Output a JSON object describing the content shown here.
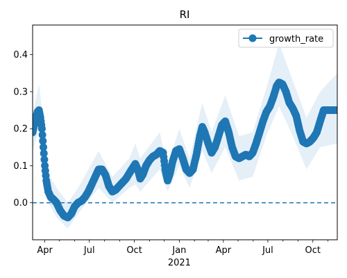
{
  "chart_data": {
    "type": "line",
    "title": "RI",
    "xlabel": "",
    "ylabel": "",
    "x_axis_kind": "date",
    "xlim": [
      "2020-03-07",
      "2021-11-20"
    ],
    "ylim": [
      -0.1,
      0.48
    ],
    "x_ticks": [
      {
        "date": "2020-04-01",
        "label": "Apr"
      },
      {
        "date": "2020-07-01",
        "label": "Jul"
      },
      {
        "date": "2020-10-01",
        "label": "Oct"
      },
      {
        "date": "2021-01-01",
        "label": "Jan",
        "sublabel": "2021"
      },
      {
        "date": "2021-04-01",
        "label": "Apr"
      },
      {
        "date": "2021-07-01",
        "label": "Jul"
      },
      {
        "date": "2021-10-01",
        "label": "Oct"
      }
    ],
    "x_minor_ticks": [
      "2020-05-01",
      "2020-06-01",
      "2020-08-01",
      "2020-09-01",
      "2020-11-01",
      "2020-12-01",
      "2021-02-01",
      "2021-03-01",
      "2021-05-01",
      "2021-06-01",
      "2021-08-01",
      "2021-09-01",
      "2021-11-01"
    ],
    "y_ticks": [
      {
        "value": 0.0,
        "label": "0.0"
      },
      {
        "value": 0.1,
        "label": "0.1"
      },
      {
        "value": 0.2,
        "label": "0.2"
      },
      {
        "value": 0.3,
        "label": "0.3"
      },
      {
        "value": 0.4,
        "label": "0.4"
      }
    ],
    "reference_line": {
      "y": 0.0,
      "style": "dashed"
    },
    "legend": {
      "position": "top-right",
      "entries": [
        "growth_rate"
      ]
    },
    "colors": {
      "line": "#1f77b4",
      "band": "#dce9f5"
    },
    "series": [
      {
        "name": "growth_rate",
        "marker": "circle",
        "points": [
          [
            "2020-03-07",
            0.19
          ],
          [
            "2020-03-12",
            0.22
          ],
          [
            "2020-03-17",
            0.245
          ],
          [
            "2020-03-20",
            0.25
          ],
          [
            "2020-03-23",
            0.23
          ],
          [
            "2020-03-26",
            0.2
          ],
          [
            "2020-03-29",
            0.15
          ],
          [
            "2020-04-01",
            0.1
          ],
          [
            "2020-04-04",
            0.06
          ],
          [
            "2020-04-08",
            0.03
          ],
          [
            "2020-04-13",
            0.015
          ],
          [
            "2020-04-18",
            0.01
          ],
          [
            "2020-04-25",
            0.0
          ],
          [
            "2020-05-02",
            -0.02
          ],
          [
            "2020-05-10",
            -0.035
          ],
          [
            "2020-05-18",
            -0.04
          ],
          [
            "2020-05-25",
            -0.03
          ],
          [
            "2020-06-01",
            -0.01
          ],
          [
            "2020-06-08",
            0.0
          ],
          [
            "2020-06-15",
            0.005
          ],
          [
            "2020-06-22",
            0.015
          ],
          [
            "2020-06-29",
            0.03
          ],
          [
            "2020-07-06",
            0.05
          ],
          [
            "2020-07-13",
            0.07
          ],
          [
            "2020-07-20",
            0.09
          ],
          [
            "2020-07-27",
            0.09
          ],
          [
            "2020-08-03",
            0.075
          ],
          [
            "2020-08-10",
            0.045
          ],
          [
            "2020-08-17",
            0.03
          ],
          [
            "2020-08-24",
            0.035
          ],
          [
            "2020-08-31",
            0.045
          ],
          [
            "2020-09-07",
            0.055
          ],
          [
            "2020-09-14",
            0.065
          ],
          [
            "2020-09-21",
            0.08
          ],
          [
            "2020-09-28",
            0.095
          ],
          [
            "2020-10-03",
            0.105
          ],
          [
            "2020-10-08",
            0.09
          ],
          [
            "2020-10-13",
            0.065
          ],
          [
            "2020-10-18",
            0.075
          ],
          [
            "2020-10-25",
            0.1
          ],
          [
            "2020-11-01",
            0.115
          ],
          [
            "2020-11-08",
            0.125
          ],
          [
            "2020-11-15",
            0.13
          ],
          [
            "2020-11-22",
            0.14
          ],
          [
            "2020-11-29",
            0.135
          ],
          [
            "2020-12-03",
            0.09
          ],
          [
            "2020-12-08",
            0.06
          ],
          [
            "2020-12-13",
            0.08
          ],
          [
            "2020-12-18",
            0.11
          ],
          [
            "2020-12-25",
            0.14
          ],
          [
            "2021-01-01",
            0.145
          ],
          [
            "2021-01-08",
            0.12
          ],
          [
            "2021-01-15",
            0.09
          ],
          [
            "2021-01-22",
            0.08
          ],
          [
            "2021-01-29",
            0.09
          ],
          [
            "2021-02-05",
            0.13
          ],
          [
            "2021-02-12",
            0.18
          ],
          [
            "2021-02-17",
            0.205
          ],
          [
            "2021-02-22",
            0.19
          ],
          [
            "2021-03-01",
            0.16
          ],
          [
            "2021-03-08",
            0.135
          ],
          [
            "2021-03-15",
            0.15
          ],
          [
            "2021-03-22",
            0.18
          ],
          [
            "2021-03-29",
            0.21
          ],
          [
            "2021-04-05",
            0.22
          ],
          [
            "2021-04-12",
            0.19
          ],
          [
            "2021-04-19",
            0.15
          ],
          [
            "2021-04-26",
            0.125
          ],
          [
            "2021-05-03",
            0.12
          ],
          [
            "2021-05-10",
            0.125
          ],
          [
            "2021-05-17",
            0.13
          ],
          [
            "2021-05-24",
            0.125
          ],
          [
            "2021-05-31",
            0.135
          ],
          [
            "2021-06-07",
            0.16
          ],
          [
            "2021-06-14",
            0.19
          ],
          [
            "2021-06-21",
            0.22
          ],
          [
            "2021-06-28",
            0.245
          ],
          [
            "2021-07-05",
            0.26
          ],
          [
            "2021-07-12",
            0.285
          ],
          [
            "2021-07-19",
            0.315
          ],
          [
            "2021-07-24",
            0.325
          ],
          [
            "2021-07-31",
            0.32
          ],
          [
            "2021-08-07",
            0.3
          ],
          [
            "2021-08-14",
            0.27
          ],
          [
            "2021-08-21",
            0.255
          ],
          [
            "2021-08-28",
            0.235
          ],
          [
            "2021-09-04",
            0.195
          ],
          [
            "2021-09-11",
            0.165
          ],
          [
            "2021-09-18",
            0.16
          ],
          [
            "2021-09-25",
            0.165
          ],
          [
            "2021-10-02",
            0.175
          ],
          [
            "2021-10-09",
            0.19
          ],
          [
            "2021-10-16",
            0.22
          ],
          [
            "2021-10-23",
            0.25
          ],
          [
            "2021-10-30",
            0.25
          ],
          [
            "2021-11-06",
            0.25
          ],
          [
            "2021-11-13",
            0.25
          ],
          [
            "2021-11-20",
            0.25
          ]
        ],
        "band": [
          [
            "2020-03-07",
            0.14,
            0.24
          ],
          [
            "2020-03-20",
            0.2,
            0.32
          ],
          [
            "2020-03-29",
            0.1,
            0.22
          ],
          [
            "2020-04-08",
            0.0,
            0.08
          ],
          [
            "2020-04-25",
            -0.04,
            0.04
          ],
          [
            "2020-05-18",
            -0.07,
            0.0
          ],
          [
            "2020-06-08",
            -0.03,
            0.04
          ],
          [
            "2020-07-20",
            0.04,
            0.14
          ],
          [
            "2020-08-17",
            0.0,
            0.07
          ],
          [
            "2020-09-21",
            0.04,
            0.12
          ],
          [
            "2020-10-03",
            0.05,
            0.16
          ],
          [
            "2020-10-13",
            0.03,
            0.12
          ],
          [
            "2020-11-22",
            0.09,
            0.19
          ],
          [
            "2020-12-08",
            0.03,
            0.1
          ],
          [
            "2021-01-01",
            0.1,
            0.2
          ],
          [
            "2021-01-22",
            0.04,
            0.12
          ],
          [
            "2021-02-17",
            0.14,
            0.27
          ],
          [
            "2021-03-08",
            0.08,
            0.19
          ],
          [
            "2021-04-05",
            0.15,
            0.29
          ],
          [
            "2021-05-03",
            0.06,
            0.18
          ],
          [
            "2021-05-31",
            0.07,
            0.19
          ],
          [
            "2021-06-28",
            0.18,
            0.31
          ],
          [
            "2021-07-24",
            0.26,
            0.43
          ],
          [
            "2021-08-21",
            0.18,
            0.33
          ],
          [
            "2021-09-18",
            0.09,
            0.23
          ],
          [
            "2021-10-16",
            0.15,
            0.3
          ],
          [
            "2021-11-20",
            0.16,
            0.35
          ]
        ]
      }
    ]
  }
}
